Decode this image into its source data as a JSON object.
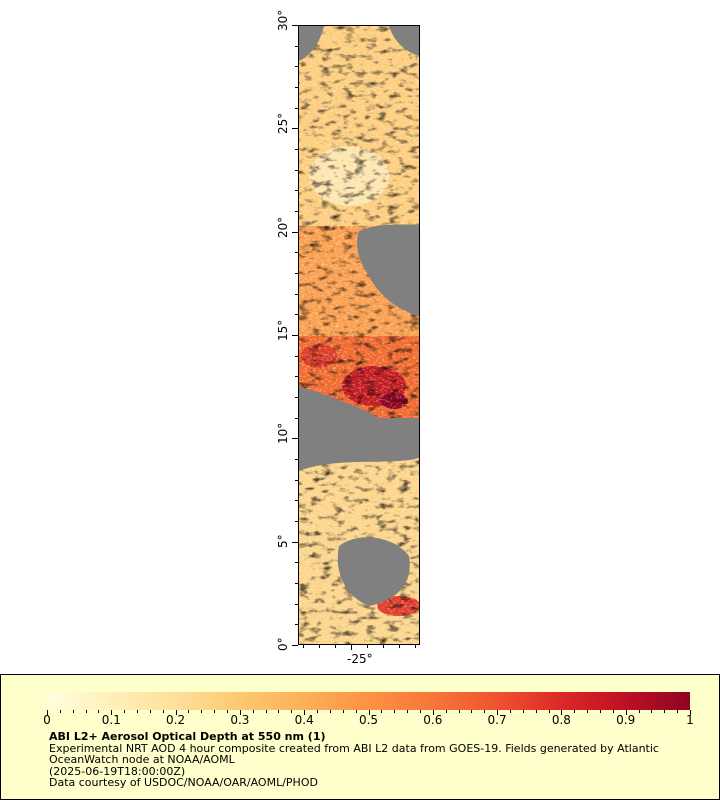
{
  "map": {
    "lat_labels": [
      "0°",
      "5°",
      "10°",
      "15°",
      "20°",
      "25°",
      "30°"
    ],
    "lon_label": "-25°",
    "latitude_range": [
      0,
      30
    ],
    "missing_data_color": "#808080"
  },
  "legend": {
    "title": "ABI L2+ Aerosol Optical Depth at 550 nm (1)",
    "description": "Experimental NRT AOD 4 hour composite created from ABI L2 data from GOES-19. Fields generated by Atlantic OceanWatch node at NOAA/AOML",
    "timestamp": "(2025-06-19T18:00:00Z)",
    "credit": "Data courtesy of USDOC/NOAA/OAR/AOML/PHOD",
    "scale_labels": [
      "0",
      "0.1",
      "0.2",
      "0.3",
      "0.4",
      "0.5",
      "0.6",
      "0.7",
      "0.8",
      "0.9",
      "1"
    ],
    "scale_range": [
      0,
      1
    ],
    "colormap": [
      "#ffffe0",
      "#fff0b8",
      "#fedf9c",
      "#fdc970",
      "#fdb05a",
      "#fc9244",
      "#f87638",
      "#ef5330",
      "#dd2828",
      "#bd1022",
      "#8e0424"
    ]
  }
}
